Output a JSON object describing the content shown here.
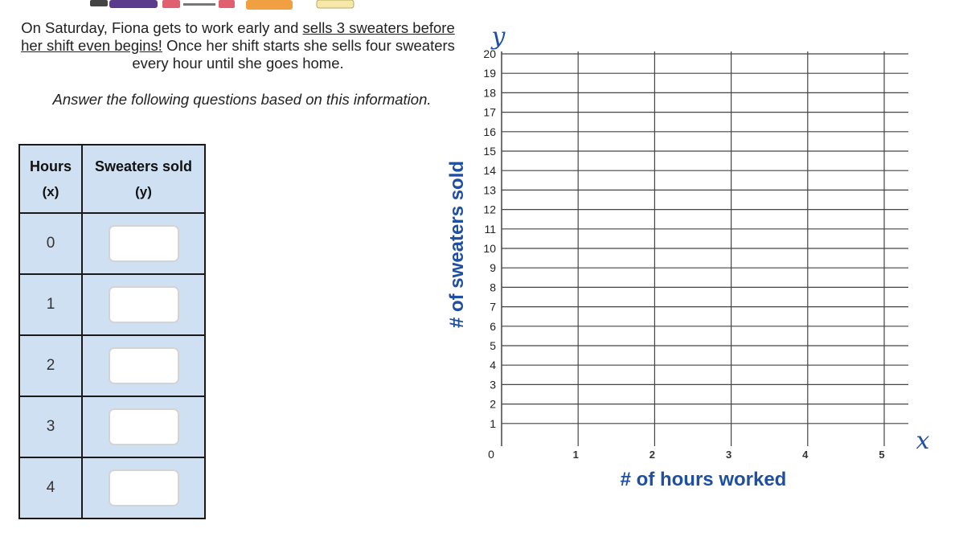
{
  "problem": {
    "part1": "On Saturday, Fiona gets to work early and ",
    "underlined": "sells 3 sweaters before her shift even begins!",
    "part2": " Once her shift starts she sells four sweaters every hour until she goes home.",
    "instruction": "Answer the following questions based on this information."
  },
  "table": {
    "header_x": "Hours",
    "header_x_sub": "(x)",
    "header_y": "Sweaters sold",
    "header_y_sub": "(y)",
    "rows": [
      {
        "x": "0",
        "y": ""
      },
      {
        "x": "1",
        "y": ""
      },
      {
        "x": "2",
        "y": ""
      },
      {
        "x": "3",
        "y": ""
      },
      {
        "x": "4",
        "y": ""
      }
    ]
  },
  "graph": {
    "y_var": "y",
    "x_var": "x",
    "y_title": "# of sweaters sold",
    "x_title": "# of hours worked",
    "origin_label": "0",
    "y_ticks": [
      "1",
      "2",
      "3",
      "4",
      "5",
      "6",
      "7",
      "8",
      "9",
      "10",
      "11",
      "12",
      "13",
      "14",
      "15",
      "16",
      "17",
      "18",
      "19",
      "20"
    ],
    "x_ticks": [
      "1",
      "2",
      "3",
      "4",
      "5"
    ]
  },
  "colors": {
    "table_fill": "#cfe0f2",
    "axis_title": "#1f4fa0"
  }
}
